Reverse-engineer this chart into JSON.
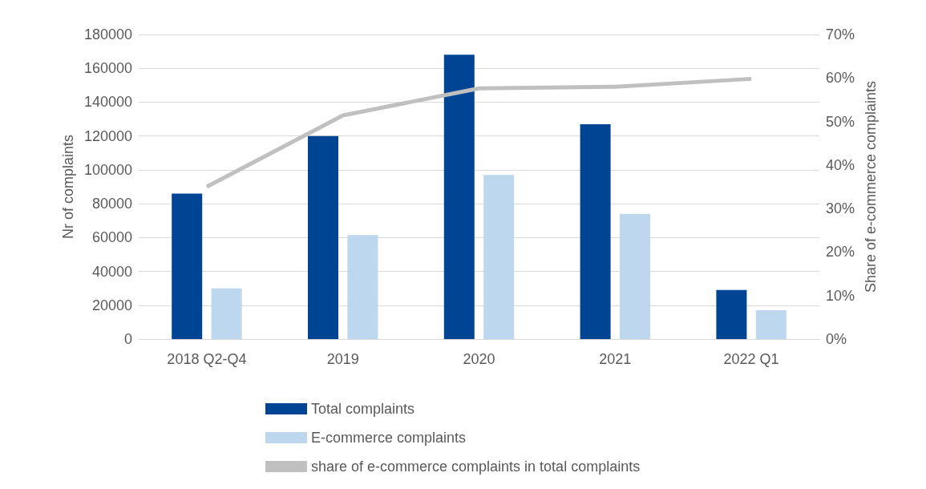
{
  "chart_data": {
    "type": "bar",
    "categories": [
      "2018 Q2-Q4",
      "2019",
      "2020",
      "2021",
      "2022 Q1"
    ],
    "series": [
      {
        "name": "Total complaints",
        "color": "#004494",
        "values": [
          86000,
          120000,
          168000,
          127000,
          29000
        ]
      },
      {
        "name": "E-commerce complaints",
        "color": "#bdd7ee",
        "values": [
          30000,
          61500,
          97000,
          74000,
          17000
        ]
      },
      {
        "name": "share of e-commerce complaints in total complaints",
        "type": "line",
        "axis": "y2",
        "color": "#c0c0c0",
        "values": [
          35,
          51.4,
          57.6,
          58,
          59.8
        ]
      }
    ],
    "ylabel": "Nr of complaints",
    "y2label": "Share of e-commerce complaints",
    "ylim": [
      0,
      180000
    ],
    "yticks": [
      0,
      20000,
      40000,
      60000,
      80000,
      100000,
      120000,
      140000,
      160000,
      180000
    ],
    "y2lim": [
      0,
      70
    ],
    "y2ticks": [
      {
        "value": 0,
        "label": "0%"
      },
      {
        "value": 10,
        "label": "10%"
      },
      {
        "value": 20,
        "label": "20%"
      },
      {
        "value": 30,
        "label": "30%"
      },
      {
        "value": 40,
        "label": "40%"
      },
      {
        "value": 50,
        "label": "50%"
      },
      {
        "value": 60,
        "label": "60%"
      },
      {
        "value": 70,
        "label": "70%"
      }
    ],
    "grid": "y",
    "legend": "bottom",
    "line_style": "solid"
  }
}
